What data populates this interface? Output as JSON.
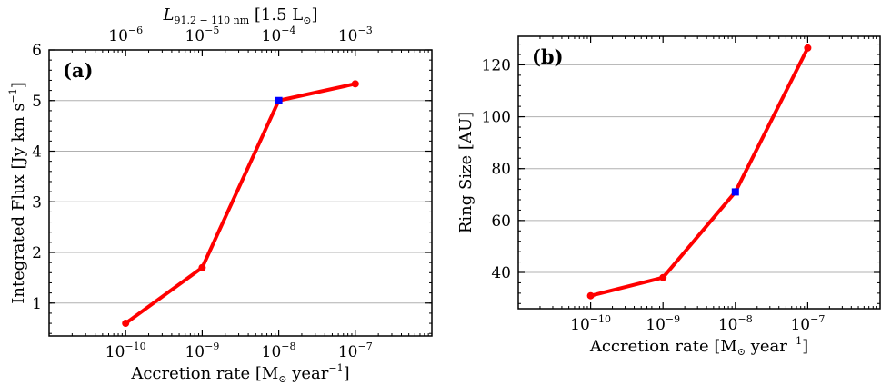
{
  "colors": {
    "line": "#ff0000",
    "highlight": "#0000ff",
    "grid": "#b0b0b0"
  },
  "chart_data": [
    {
      "type": "line",
      "panel_label": "(a)",
      "x": [
        1e-10,
        1e-09,
        1e-08,
        1e-07
      ],
      "x_tick_labels": [
        "10",
        "10",
        "10",
        "10"
      ],
      "x_tick_exponents": [
        "−10",
        "−9",
        "−8",
        "−7"
      ],
      "y": [
        0.6,
        1.7,
        5.0,
        5.33
      ],
      "highlight_index": 2,
      "xlabel": "Accretion rate [M",
      "xlabel_unit_sub": "⊙",
      "xlabel_unit": " year",
      "xlabel_unit_sup": "−1",
      "xlabel_close": "]",
      "ylabel": "Integrated Flux [Jy km s",
      "ylabel_sup": "−1",
      "ylabel_close": "]",
      "xscale": "log",
      "xlim": [
        1e-11,
        1e-06
      ],
      "ylim": [
        0.35,
        6
      ],
      "yticks": [
        1,
        2,
        3,
        4,
        5,
        6
      ],
      "y_tick_labels": [
        "1",
        "2",
        "3",
        "4",
        "5",
        "6"
      ],
      "grid": "horizontal",
      "top_axis": {
        "label": "L",
        "label_sub": "91.2 − 110 nm",
        "label_unit": " [1.5 L",
        "label_unit_sub": "⊙",
        "label_close": "]",
        "tick_values": [
          1e-06,
          1e-05,
          0.0001,
          0.001
        ],
        "tick_labels": [
          "10",
          "10",
          "10",
          "10"
        ],
        "tick_exponents": [
          "−6",
          "−5",
          "−4",
          "−3"
        ]
      }
    },
    {
      "type": "line",
      "panel_label": "(b)",
      "x": [
        1e-10,
        1e-09,
        1e-08,
        1e-07
      ],
      "x_tick_labels": [
        "10",
        "10",
        "10",
        "10"
      ],
      "x_tick_exponents": [
        "−10",
        "−9",
        "−8",
        "−7"
      ],
      "y": [
        31,
        38,
        71,
        126.5
      ],
      "highlight_index": 2,
      "xlabel": "Accretion rate [M",
      "xlabel_unit_sub": "⊙",
      "xlabel_unit": " year",
      "xlabel_unit_sup": "−1",
      "xlabel_close": "]",
      "ylabel": "Ring Size [AU]",
      "xscale": "log",
      "xlim": [
        1e-11,
        1e-06
      ],
      "ylim": [
        26,
        131
      ],
      "yticks": [
        40,
        60,
        80,
        100,
        120
      ],
      "y_tick_labels": [
        "40",
        "60",
        "80",
        "100",
        "120"
      ],
      "grid": "horizontal"
    }
  ]
}
